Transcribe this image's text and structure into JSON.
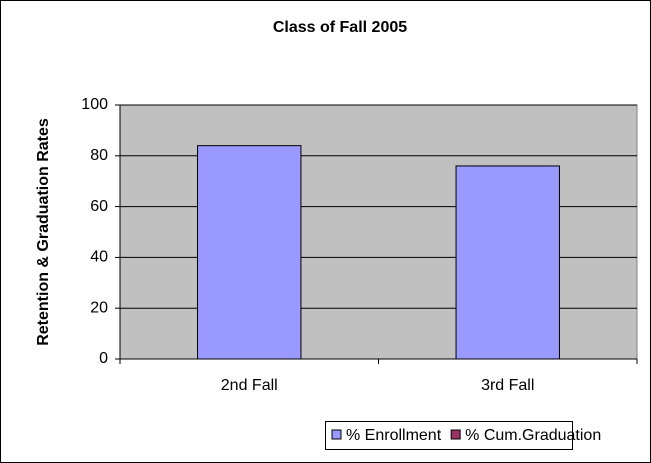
{
  "chart_data": {
    "type": "bar",
    "title": "Class of Fall 2005",
    "ylabel": "Retention & Graduation Rates",
    "categories": [
      "2nd Fall",
      "3rd Fall"
    ],
    "series": [
      {
        "name": "% Enrollment",
        "color": "#9999ff",
        "values": [
          84,
          76
        ]
      },
      {
        "name": "% Cum.Graduation",
        "color": "#993366",
        "values": [
          null,
          null
        ]
      }
    ],
    "ylim": [
      0,
      100
    ],
    "yticks": [
      0,
      20,
      40,
      60,
      80,
      100
    ],
    "grid": true,
    "legend": "bottom"
  }
}
